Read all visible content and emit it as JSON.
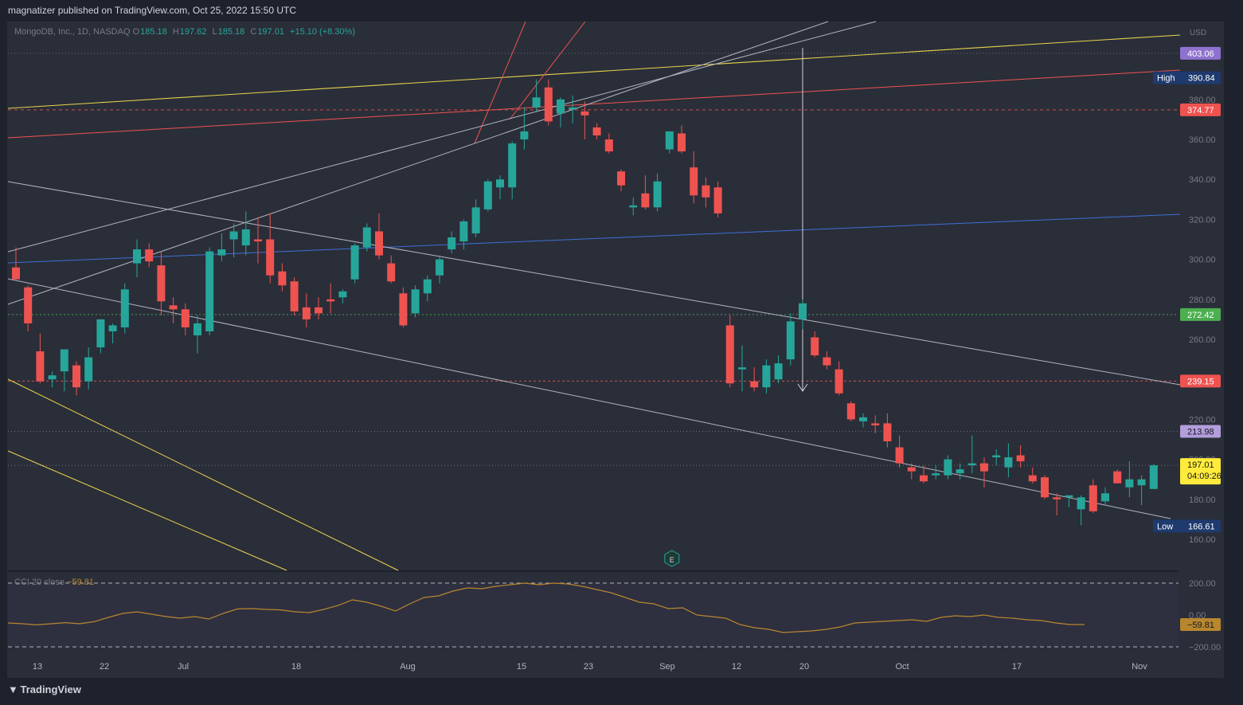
{
  "header": {
    "published": "magnatizer published on TradingView.com, Oct 25, 2022 15:50 UTC"
  },
  "legend": {
    "symbol": "MongoDB, Inc., 1D, NASDAQ",
    "open_key": "O",
    "open": "185.18",
    "high_key": "H",
    "high": "197.62",
    "low_key": "L",
    "low": "185.18",
    "close_key": "C",
    "close": "197.01",
    "change": "+15.10 (+8.30%)"
  },
  "cci_legend": {
    "name": "CCI  20  close",
    "value": "−59.81"
  },
  "footer": {
    "logo": "TradingView"
  },
  "colors": {
    "up": "#26a69a",
    "down": "#ef5350",
    "background": "#2a2e39",
    "cci": "#b8862e"
  },
  "chart_data": [
    {
      "type": "candlestick",
      "currency": "USD",
      "price_axis": {
        "range": [
          150,
          410
        ],
        "ticks": [
          "160.00",
          "180.00",
          "200.00",
          "220.00",
          "240.00",
          "260.00",
          "280.00",
          "300.00",
          "320.00",
          "340.00",
          "360.00",
          "380.00"
        ]
      },
      "time_axis": {
        "labels": [
          "13",
          "22",
          "Jul",
          "18",
          "Aug",
          "15",
          "23",
          "Sep",
          "12",
          "20",
          "Oct",
          "17",
          "Nov"
        ]
      },
      "candles": [
        {
          "t": "Jun 10",
          "o": 296,
          "h": 306,
          "l": 290,
          "c": 290
        },
        {
          "t": "Jun 13",
          "o": 286,
          "h": 287,
          "l": 264,
          "c": 268
        },
        {
          "t": "Jun 14",
          "o": 254,
          "h": 263,
          "l": 238,
          "c": 239
        },
        {
          "t": "Jun 15",
          "o": 240,
          "h": 244,
          "l": 236,
          "c": 242
        },
        {
          "t": "Jun 16",
          "o": 244,
          "h": 255,
          "l": 234,
          "c": 255
        },
        {
          "t": "Jun 17",
          "o": 247,
          "h": 249,
          "l": 232,
          "c": 236
        },
        {
          "t": "Jun 21",
          "o": 239,
          "h": 256,
          "l": 235,
          "c": 251
        },
        {
          "t": "Jun 22",
          "o": 256,
          "h": 270,
          "l": 253,
          "c": 270
        },
        {
          "t": "Jun 23",
          "o": 264,
          "h": 268,
          "l": 258,
          "c": 267
        },
        {
          "t": "Jun 24",
          "o": 266,
          "h": 288,
          "l": 263,
          "c": 285
        },
        {
          "t": "Jun 27",
          "o": 298,
          "h": 310,
          "l": 291,
          "c": 305
        },
        {
          "t": "Jun 28",
          "o": 305,
          "h": 308,
          "l": 296,
          "c": 299
        },
        {
          "t": "Jun 29",
          "o": 297,
          "h": 304,
          "l": 272,
          "c": 279
        },
        {
          "t": "Jun 30",
          "o": 277,
          "h": 281,
          "l": 268,
          "c": 275
        },
        {
          "t": "Jul 1",
          "o": 275,
          "h": 278,
          "l": 262,
          "c": 266
        },
        {
          "t": "Jul 5",
          "o": 262,
          "h": 272,
          "l": 253,
          "c": 268
        },
        {
          "t": "Jul 6",
          "o": 264,
          "h": 306,
          "l": 262,
          "c": 304
        },
        {
          "t": "Jul 7",
          "o": 302,
          "h": 313,
          "l": 299,
          "c": 305
        },
        {
          "t": "Jul 8",
          "o": 310,
          "h": 318,
          "l": 301,
          "c": 314
        },
        {
          "t": "Jul 11",
          "o": 307,
          "h": 324,
          "l": 302,
          "c": 315
        },
        {
          "t": "Jul 12",
          "o": 310,
          "h": 321,
          "l": 298,
          "c": 309
        },
        {
          "t": "Jul 13",
          "o": 310,
          "h": 323,
          "l": 288,
          "c": 292
        },
        {
          "t": "Jul 14",
          "o": 294,
          "h": 298,
          "l": 284,
          "c": 287
        },
        {
          "t": "Jul 15",
          "o": 289,
          "h": 291,
          "l": 272,
          "c": 274
        },
        {
          "t": "Jul 18",
          "o": 276,
          "h": 283,
          "l": 266,
          "c": 270
        },
        {
          "t": "Jul 19",
          "o": 276,
          "h": 281,
          "l": 270,
          "c": 273
        },
        {
          "t": "Jul 20",
          "o": 280,
          "h": 288,
          "l": 273,
          "c": 279
        },
        {
          "t": "Jul 21",
          "o": 281,
          "h": 285,
          "l": 278,
          "c": 284
        },
        {
          "t": "Jul 22",
          "o": 290,
          "h": 308,
          "l": 288,
          "c": 307
        },
        {
          "t": "Jul 25",
          "o": 306,
          "h": 318,
          "l": 304,
          "c": 316
        },
        {
          "t": "Jul 26",
          "o": 314,
          "h": 323,
          "l": 300,
          "c": 302
        },
        {
          "t": "Jul 27",
          "o": 298,
          "h": 302,
          "l": 288,
          "c": 289
        },
        {
          "t": "Jul 28",
          "o": 283,
          "h": 286,
          "l": 266,
          "c": 267
        },
        {
          "t": "Jul 29",
          "o": 273,
          "h": 287,
          "l": 271,
          "c": 285
        },
        {
          "t": "Aug 1",
          "o": 283,
          "h": 292,
          "l": 279,
          "c": 290
        },
        {
          "t": "Aug 2",
          "o": 292,
          "h": 302,
          "l": 288,
          "c": 300
        },
        {
          "t": "Aug 3",
          "o": 305,
          "h": 314,
          "l": 303,
          "c": 311
        },
        {
          "t": "Aug 4",
          "o": 309,
          "h": 320,
          "l": 305,
          "c": 319
        },
        {
          "t": "Aug 5",
          "o": 313,
          "h": 330,
          "l": 311,
          "c": 326
        },
        {
          "t": "Aug 8",
          "o": 325,
          "h": 340,
          "l": 324,
          "c": 339
        },
        {
          "t": "Aug 9",
          "o": 336,
          "h": 342,
          "l": 330,
          "c": 340
        },
        {
          "t": "Aug 10",
          "o": 336,
          "h": 359,
          "l": 330,
          "c": 358
        },
        {
          "t": "Aug 11",
          "o": 360,
          "h": 376,
          "l": 355,
          "c": 364
        },
        {
          "t": "Aug 12",
          "o": 376,
          "h": 390,
          "l": 374,
          "c": 381
        },
        {
          "t": "Aug 15",
          "o": 386,
          "h": 390,
          "l": 367,
          "c": 369
        },
        {
          "t": "Aug 16",
          "o": 373,
          "h": 381,
          "l": 366,
          "c": 380
        },
        {
          "t": "Aug 17",
          "o": 375,
          "h": 382,
          "l": 368,
          "c": 376
        },
        {
          "t": "Aug 18",
          "o": 374,
          "h": 379,
          "l": 360,
          "c": 372
        },
        {
          "t": "Aug 19",
          "o": 366,
          "h": 368,
          "l": 360,
          "c": 362
        },
        {
          "t": "Aug 22",
          "o": 360,
          "h": 363,
          "l": 353,
          "c": 354
        },
        {
          "t": "Aug 23",
          "o": 344,
          "h": 345,
          "l": 334,
          "c": 337
        },
        {
          "t": "Aug 24",
          "o": 326,
          "h": 331,
          "l": 322,
          "c": 327
        },
        {
          "t": "Aug 25",
          "o": 333,
          "h": 342,
          "l": 325,
          "c": 326
        },
        {
          "t": "Aug 26",
          "o": 326,
          "h": 343,
          "l": 324,
          "c": 339
        },
        {
          "t": "Aug 29",
          "o": 355,
          "h": 362,
          "l": 353,
          "c": 364
        },
        {
          "t": "Aug 30",
          "o": 363,
          "h": 367,
          "l": 353,
          "c": 354
        },
        {
          "t": "Aug 31",
          "o": 346,
          "h": 354,
          "l": 328,
          "c": 332
        },
        {
          "t": "Sep 1",
          "o": 337,
          "h": 341,
          "l": 326,
          "c": 331
        },
        {
          "t": "Sep 2",
          "o": 336,
          "h": 339,
          "l": 321,
          "c": 323
        },
        {
          "t": "Sep 6",
          "o": 267,
          "h": 272,
          "l": 236,
          "c": 238
        },
        {
          "t": "Sep 7",
          "o": 245,
          "h": 257,
          "l": 234,
          "c": 246
        },
        {
          "t": "Sep 8",
          "o": 239,
          "h": 246,
          "l": 234,
          "c": 236
        },
        {
          "t": "Sep 9",
          "o": 236,
          "h": 250,
          "l": 233,
          "c": 247
        },
        {
          "t": "Sep 12",
          "o": 240,
          "h": 252,
          "l": 238,
          "c": 248
        },
        {
          "t": "Sep 13",
          "o": 250,
          "h": 273,
          "l": 247,
          "c": 269
        },
        {
          "t": "Sep 14",
          "o": 270,
          "h": 280,
          "l": 265,
          "c": 278
        },
        {
          "t": "Sep 15",
          "o": 261,
          "h": 264,
          "l": 251,
          "c": 252
        },
        {
          "t": "Sep 16",
          "o": 251,
          "h": 254,
          "l": 245,
          "c": 247
        },
        {
          "t": "Sep 19",
          "o": 245,
          "h": 249,
          "l": 232,
          "c": 233
        },
        {
          "t": "Sep 20",
          "o": 228,
          "h": 229,
          "l": 219,
          "c": 220
        },
        {
          "t": "Sep 21",
          "o": 219,
          "h": 223,
          "l": 216,
          "c": 221
        },
        {
          "t": "Sep 22",
          "o": 218,
          "h": 222,
          "l": 213,
          "c": 217
        },
        {
          "t": "Sep 23",
          "o": 218,
          "h": 223,
          "l": 206,
          "c": 209
        },
        {
          "t": "Sep 26",
          "o": 206,
          "h": 212,
          "l": 196,
          "c": 198
        },
        {
          "t": "Sep 27",
          "o": 196,
          "h": 198,
          "l": 190,
          "c": 194
        },
        {
          "t": "Sep 28",
          "o": 192,
          "h": 197,
          "l": 188,
          "c": 189
        },
        {
          "t": "Sep 29",
          "o": 192,
          "h": 197,
          "l": 190,
          "c": 193
        },
        {
          "t": "Sep 30",
          "o": 192,
          "h": 202,
          "l": 190,
          "c": 200
        },
        {
          "t": "Oct 3",
          "o": 193,
          "h": 198,
          "l": 190,
          "c": 195
        },
        {
          "t": "Oct 4",
          "o": 197,
          "h": 212,
          "l": 193,
          "c": 198
        },
        {
          "t": "Oct 5",
          "o": 198,
          "h": 201,
          "l": 186,
          "c": 194
        },
        {
          "t": "Oct 6",
          "o": 201,
          "h": 205,
          "l": 197,
          "c": 202
        },
        {
          "t": "Oct 7",
          "o": 196,
          "h": 208,
          "l": 191,
          "c": 201
        },
        {
          "t": "Oct 10",
          "o": 202,
          "h": 207,
          "l": 196,
          "c": 199
        },
        {
          "t": "Oct 11",
          "o": 192,
          "h": 196,
          "l": 188,
          "c": 189
        },
        {
          "t": "Oct 12",
          "o": 191,
          "h": 192,
          "l": 180,
          "c": 181
        },
        {
          "t": "Oct 13",
          "o": 181,
          "h": 183,
          "l": 172,
          "c": 180
        },
        {
          "t": "Oct 14",
          "o": 181,
          "h": 182,
          "l": 176,
          "c": 182
        },
        {
          "t": "Oct 17",
          "o": 175,
          "h": 182,
          "l": 167,
          "c": 181
        },
        {
          "t": "Oct 18",
          "o": 187,
          "h": 190,
          "l": 173,
          "c": 174
        },
        {
          "t": "Oct 19",
          "o": 179,
          "h": 186,
          "l": 177,
          "c": 183
        },
        {
          "t": "Oct 20",
          "o": 194,
          "h": 195,
          "l": 188,
          "c": 188
        },
        {
          "t": "Oct 21",
          "o": 186,
          "h": 199,
          "l": 181,
          "c": 190
        },
        {
          "t": "Oct 24",
          "o": 187,
          "h": 192,
          "l": 177,
          "c": 190
        },
        {
          "t": "Oct 25",
          "o": 185.18,
          "h": 197.62,
          "l": 185.18,
          "c": 197.01
        }
      ],
      "price_labels": [
        {
          "text": "403.06",
          "color": "#8f72cf"
        },
        {
          "tag": "High",
          "text": "390.84",
          "color": "#1e3a6e"
        },
        {
          "text": "374.77",
          "color": "#ef5350"
        },
        {
          "text": "272.42",
          "color": "#4caf50"
        },
        {
          "text": "239.15",
          "color": "#ef5350"
        },
        {
          "text": "213.98",
          "color": "#b39ddb"
        },
        {
          "text": "197.01",
          "sub": "04:09:26",
          "color": "#ffeb3b"
        },
        {
          "tag": "Low",
          "text": "166.61",
          "color": "#1e3a6e"
        }
      ],
      "event_marker": "E"
    },
    {
      "type": "line",
      "name": "CCI",
      "y_ticks": [
        "200.00",
        "0.00",
        "−200.00"
      ],
      "series": [
        {
          "values": [
            -50,
            -55,
            -62,
            -55,
            -48,
            -55,
            -42,
            -15,
            10,
            20,
            5,
            -10,
            -20,
            -10,
            -25,
            10,
            38,
            40,
            35,
            32,
            20,
            15,
            35,
            60,
            95,
            80,
            55,
            25,
            70,
            110,
            120,
            150,
            170,
            165,
            180,
            190,
            200,
            190,
            200,
            195,
            180,
            160,
            140,
            110,
            80,
            70,
            40,
            45,
            0,
            -10,
            -20,
            -60,
            -80,
            -90,
            -110,
            -105,
            -100,
            -90,
            -75,
            -50,
            -45,
            -40,
            -35,
            -30,
            -40,
            -15,
            -5,
            -10,
            0,
            -15,
            -20,
            -30,
            -35,
            -50,
            -60,
            -59.81
          ]
        }
      ]
    }
  ]
}
